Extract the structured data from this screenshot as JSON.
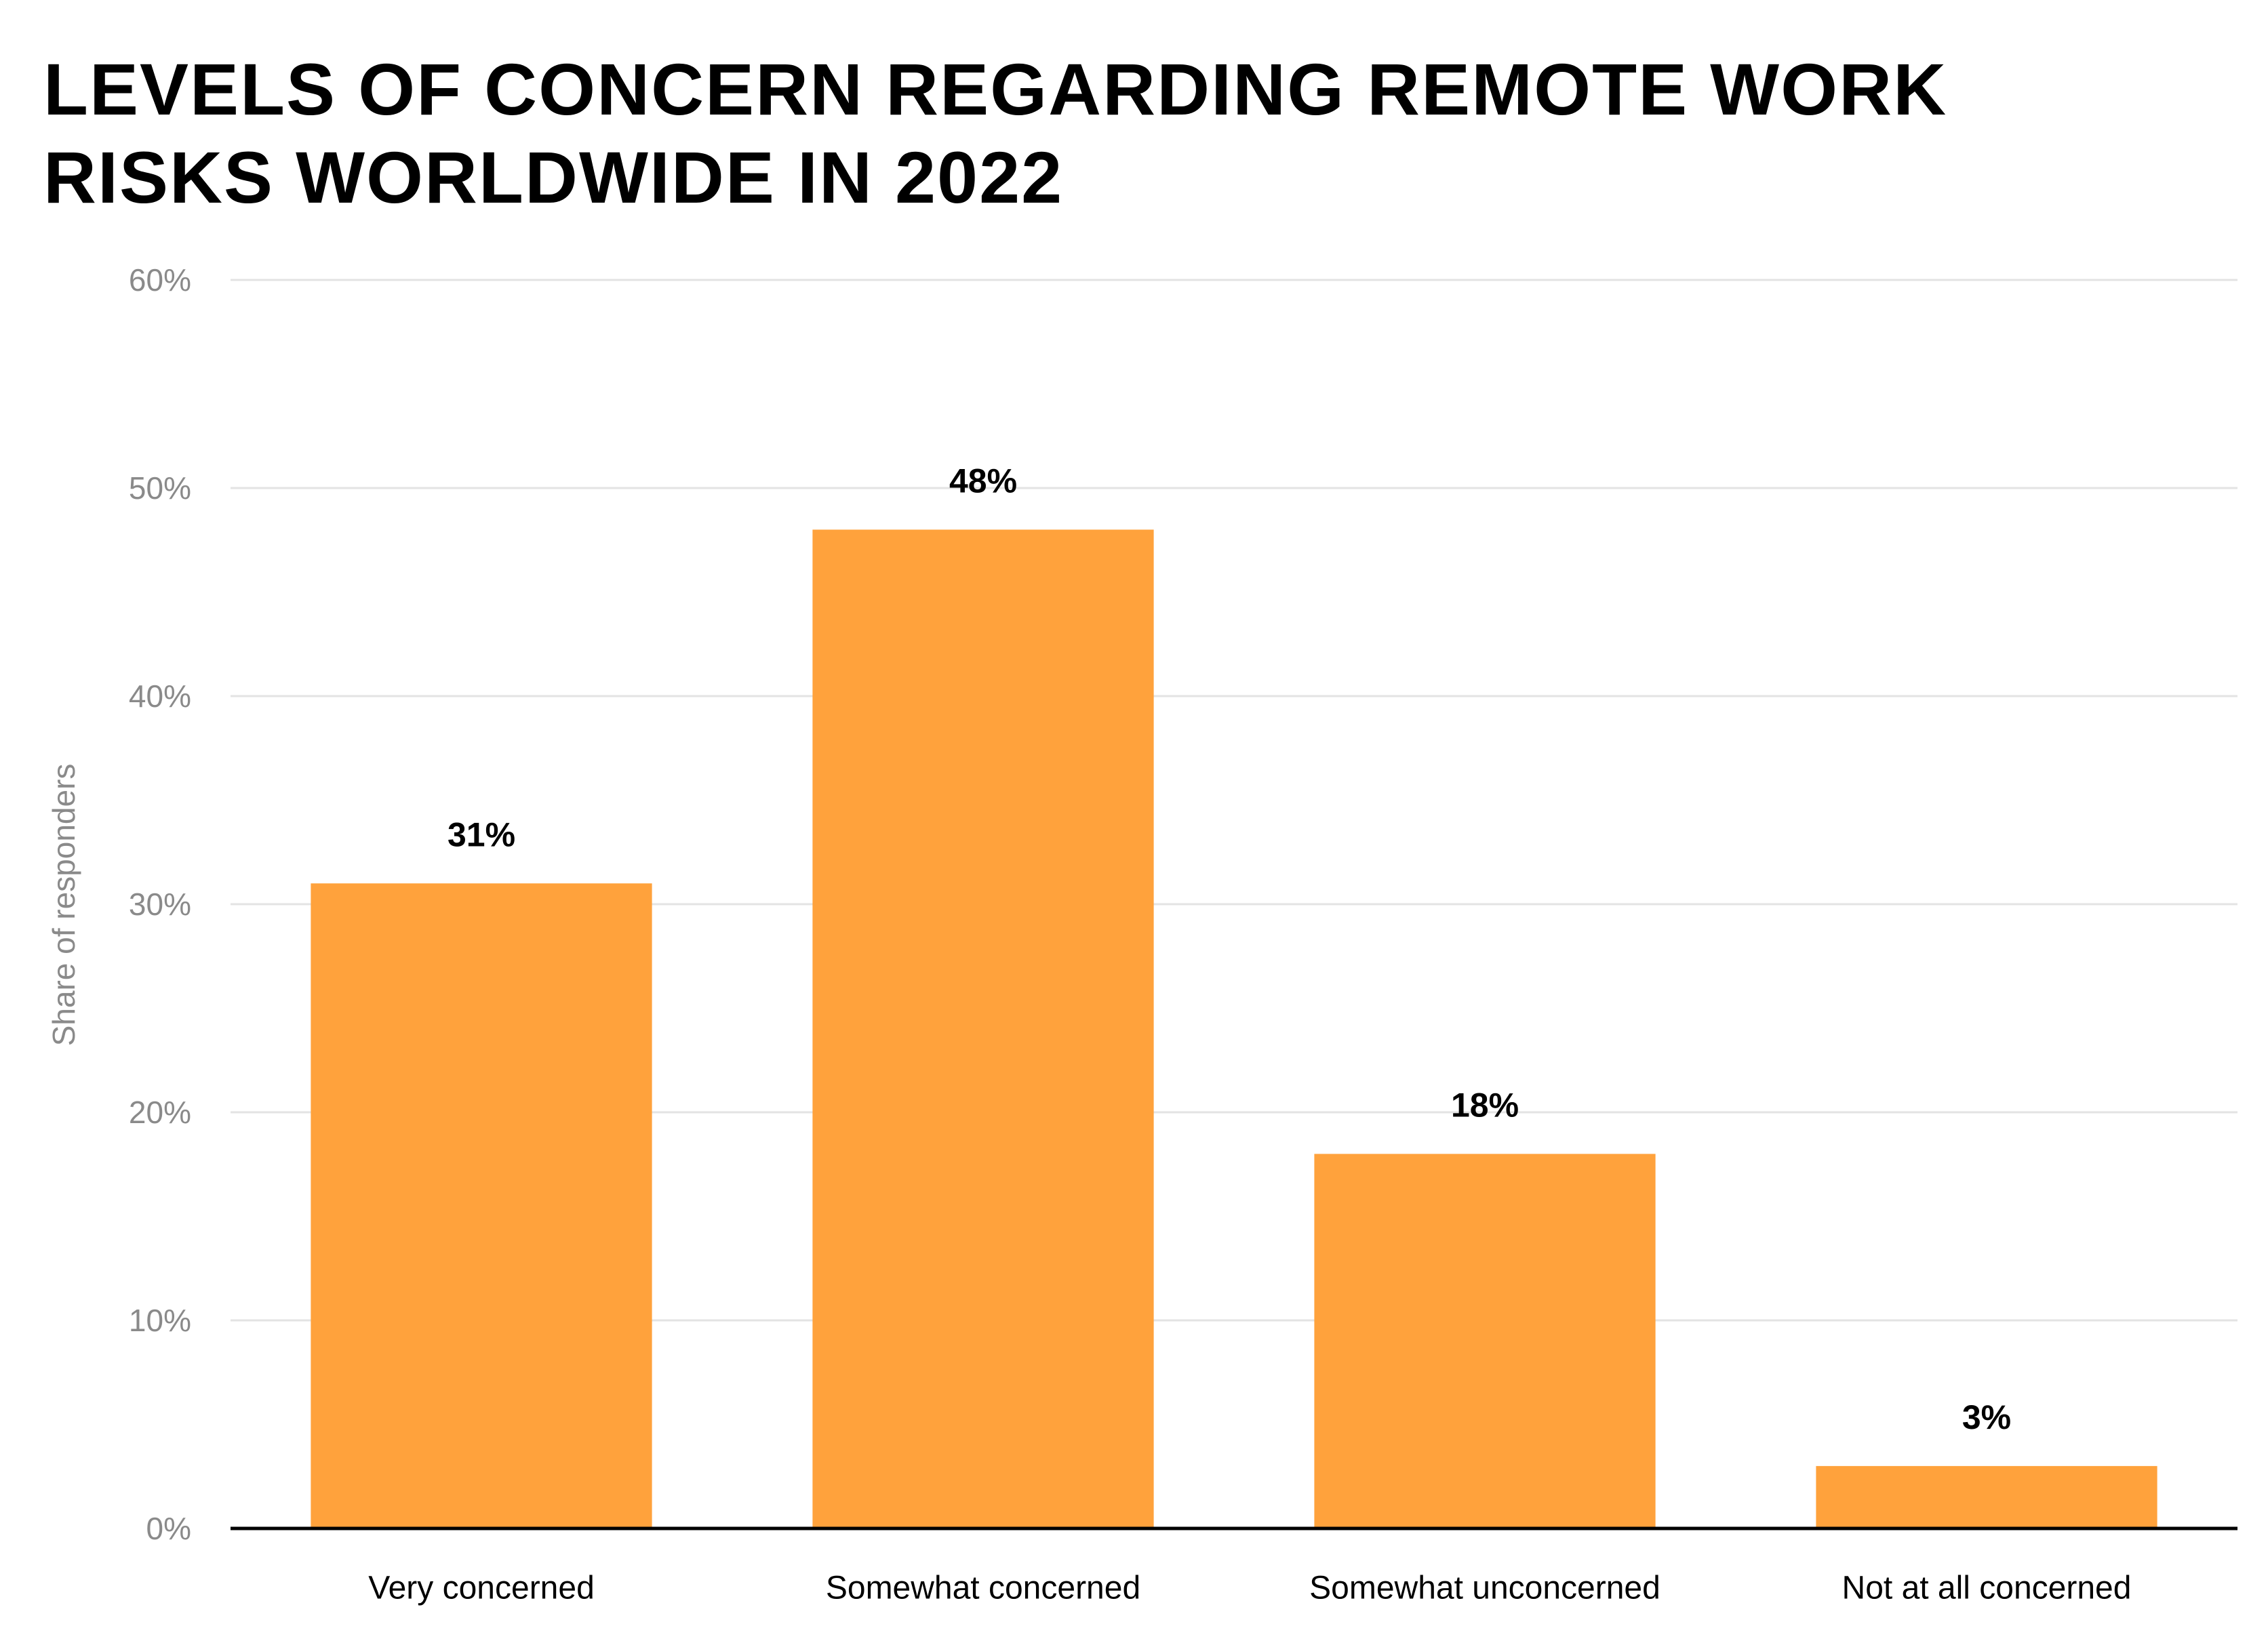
{
  "chart_data": {
    "type": "bar",
    "title_lines": [
      "LEVELS OF CONCERN REGARDING REMOTE WORK",
      "RISKS WORLDWIDE IN 2022"
    ],
    "title": "LEVELS OF CONCERN REGARDING REMOTE WORK RISKS WORLDWIDE IN 2022",
    "categories": [
      "Very concerned",
      "Somewhat concerned",
      "Somewhat unconcerned",
      "Not at all concerned"
    ],
    "values": [
      31,
      48,
      18,
      3
    ],
    "data_labels": [
      "31%",
      "48%",
      "18%",
      "3%"
    ],
    "xlabel": "",
    "ylabel": "Share of responders",
    "ylim": [
      0,
      60
    ],
    "yticks": [
      0,
      10,
      20,
      30,
      40,
      50,
      60
    ],
    "ytick_labels": [
      "0%",
      "10%",
      "20%",
      "30%",
      "40%",
      "50%",
      "60%"
    ],
    "grid": true,
    "legend": "none",
    "colors": {
      "bar": "#FFA23C",
      "grid": "#E3E3E3",
      "axis": "#000000",
      "tick_label": "#8A8A8A",
      "data_label": "#000000",
      "category_label": "#000000"
    }
  }
}
